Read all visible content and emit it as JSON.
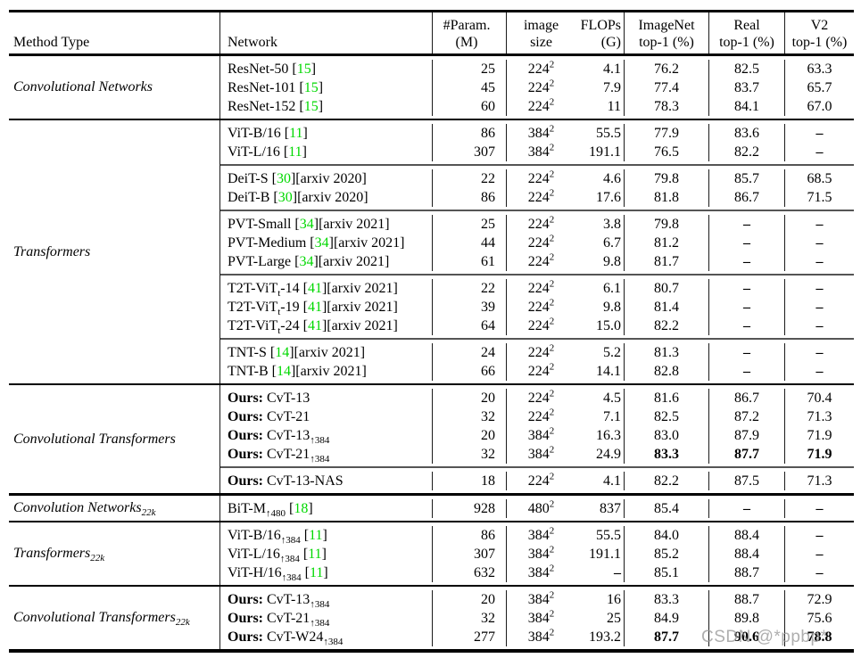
{
  "colors": {
    "citation_green": "#00d800",
    "watermark_gray": "#9b9b9b",
    "rule_black": "#000000"
  },
  "watermark": "CSDN @*ppbp*",
  "header": {
    "method_type": "Method Type",
    "network": "Network",
    "params_l1": "#Param.",
    "params_l2": "(M)",
    "size_l1": "image",
    "size_l2": "size",
    "flops_l1": "FLOPs",
    "flops_l2": "(G)",
    "imagenet_l1": "ImageNet",
    "imagenet_l2": "top-1 (%)",
    "real_l1": "Real",
    "real_l2": "top-1 (%)",
    "v2_l1": "V2",
    "v2_l2": "top-1 (%)"
  },
  "sections": [
    {
      "method_type": "Convolutional Networks",
      "thick_bottom": false,
      "groups": [
        [
          {
            "ours": false,
            "network": "ResNet-50",
            "cite": "15",
            "note": "",
            "params": "25",
            "size": "224^{2}",
            "flops": "4.1",
            "imagenet": "76.2",
            "real": "82.5",
            "v2": "63.3",
            "bold_metrics": false
          },
          {
            "ours": false,
            "network": "ResNet-101",
            "cite": "15",
            "note": "",
            "params": "45",
            "size": "224^{2}",
            "flops": "7.9",
            "imagenet": "77.4",
            "real": "83.7",
            "v2": "65.7",
            "bold_metrics": false
          },
          {
            "ours": false,
            "network": "ResNet-152",
            "cite": "15",
            "note": "",
            "params": "60",
            "size": "224^{2}",
            "flops": "11",
            "imagenet": "78.3",
            "real": "84.1",
            "v2": "67.0",
            "bold_metrics": false
          }
        ]
      ]
    },
    {
      "method_type": "Transformers",
      "thick_bottom": false,
      "groups": [
        [
          {
            "ours": false,
            "network": "ViT-B/16",
            "cite": "11",
            "note": "",
            "params": "86",
            "size": "384^{2}",
            "flops": "55.5",
            "imagenet": "77.9",
            "real": "83.6",
            "v2": "–",
            "bold_metrics": false
          },
          {
            "ours": false,
            "network": "ViT-L/16",
            "cite": "11",
            "note": "",
            "params": "307",
            "size": "384^{2}",
            "flops": "191.1",
            "imagenet": "76.5",
            "real": "82.2",
            "v2": "–",
            "bold_metrics": false
          }
        ],
        [
          {
            "ours": false,
            "network": "DeiT-S",
            "cite": "30",
            "note": "[arxiv 2020]",
            "params": "22",
            "size": "224^{2}",
            "flops": "4.6",
            "imagenet": "79.8",
            "real": "85.7",
            "v2": "68.5",
            "bold_metrics": false
          },
          {
            "ours": false,
            "network": "DeiT-B",
            "cite": "30",
            "note": "[arxiv 2020]",
            "params": "86",
            "size": "224^{2}",
            "flops": "17.6",
            "imagenet": "81.8",
            "real": "86.7",
            "v2": "71.5",
            "bold_metrics": false
          }
        ],
        [
          {
            "ours": false,
            "network": "PVT-Small",
            "cite": "34",
            "note": "[arxiv 2021]",
            "params": "25",
            "size": "224^{2}",
            "flops": "3.8",
            "imagenet": "79.8",
            "real": "–",
            "v2": "–",
            "bold_metrics": false
          },
          {
            "ours": false,
            "network": "PVT-Medium",
            "cite": "34",
            "note": "[arxiv 2021]",
            "params": "44",
            "size": "224^{2}",
            "flops": "6.7",
            "imagenet": "81.2",
            "real": "–",
            "v2": "–",
            "bold_metrics": false
          },
          {
            "ours": false,
            "network": "PVT-Large",
            "cite": "34",
            "note": "[arxiv 2021]",
            "params": "61",
            "size": "224^{2}",
            "flops": "9.8",
            "imagenet": "81.7",
            "real": "–",
            "v2": "–",
            "bold_metrics": false
          }
        ],
        [
          {
            "ours": false,
            "network": "T2T-ViT_{t}-14",
            "cite": "41",
            "note": "[arxiv 2021]",
            "params": "22",
            "size": "224^{2}",
            "flops": "6.1",
            "imagenet": "80.7",
            "real": "–",
            "v2": "–",
            "bold_metrics": false
          },
          {
            "ours": false,
            "network": "T2T-ViT_{t}-19",
            "cite": "41",
            "note": "[arxiv 2021]",
            "params": "39",
            "size": "224^{2}",
            "flops": "9.8",
            "imagenet": "81.4",
            "real": "–",
            "v2": "–",
            "bold_metrics": false
          },
          {
            "ours": false,
            "network": "T2T-ViT_{t}-24",
            "cite": "41",
            "note": "[arxiv 2021]",
            "params": "64",
            "size": "224^{2}",
            "flops": "15.0",
            "imagenet": "82.2",
            "real": "–",
            "v2": "–",
            "bold_metrics": false
          }
        ],
        [
          {
            "ours": false,
            "network": "TNT-S",
            "cite": "14",
            "note": "[arxiv 2021]",
            "params": "24",
            "size": "224^{2}",
            "flops": "5.2",
            "imagenet": "81.3",
            "real": "–",
            "v2": "–",
            "bold_metrics": false
          },
          {
            "ours": false,
            "network": "TNT-B",
            "cite": "14",
            "note": "[arxiv 2021]",
            "params": "66",
            "size": "224^{2}",
            "flops": "14.1",
            "imagenet": "82.8",
            "real": "–",
            "v2": "–",
            "bold_metrics": false
          }
        ]
      ]
    },
    {
      "method_type": "Convolutional Transformers",
      "thick_bottom": true,
      "groups": [
        [
          {
            "ours": true,
            "network": "CvT-13",
            "cite": "",
            "note": "",
            "params": "20",
            "size": "224^{2}",
            "flops": "4.5",
            "imagenet": "81.6",
            "real": "86.7",
            "v2": "70.4",
            "bold_metrics": false
          },
          {
            "ours": true,
            "network": "CvT-21",
            "cite": "",
            "note": "",
            "params": "32",
            "size": "224^{2}",
            "flops": "7.1",
            "imagenet": "82.5",
            "real": "87.2",
            "v2": "71.3",
            "bold_metrics": false
          },
          {
            "ours": true,
            "network": "CvT-13_{↑384}",
            "cite": "",
            "note": "",
            "params": "20",
            "size": "384^{2}",
            "flops": "16.3",
            "imagenet": "83.0",
            "real": "87.9",
            "v2": "71.9",
            "bold_metrics": false
          },
          {
            "ours": true,
            "network": "CvT-21_{↑384}",
            "cite": "",
            "note": "",
            "params": "32",
            "size": "384^{2}",
            "flops": "24.9",
            "imagenet": "83.3",
            "real": "87.7",
            "v2": "71.9",
            "bold_metrics": true
          }
        ],
        [
          {
            "ours": true,
            "network": "CvT-13-NAS",
            "cite": "",
            "note": "",
            "params": "18",
            "size": "224^{2}",
            "flops": "4.1",
            "imagenet": "82.2",
            "real": "87.5",
            "v2": "71.3",
            "bold_metrics": false
          }
        ]
      ]
    },
    {
      "method_type": "Convolution Networks_{22k}",
      "thick_bottom": false,
      "groups": [
        [
          {
            "ours": false,
            "network": "BiT-M_{↑480}",
            "cite": "18",
            "note": "",
            "params": "928",
            "size": "480^{2}",
            "flops": "837",
            "imagenet": "85.4",
            "real": "–",
            "v2": "–",
            "bold_metrics": false
          }
        ]
      ]
    },
    {
      "method_type": "Transformers_{22k}",
      "thick_bottom": false,
      "groups": [
        [
          {
            "ours": false,
            "network": "ViT-B/16_{↑384}",
            "cite": "11",
            "note": "",
            "params": "86",
            "size": "384^{2}",
            "flops": "55.5",
            "imagenet": "84.0",
            "real": "88.4",
            "v2": "–",
            "bold_metrics": false
          },
          {
            "ours": false,
            "network": "ViT-L/16_{↑384}",
            "cite": "11",
            "note": "",
            "params": "307",
            "size": "384^{2}",
            "flops": "191.1",
            "imagenet": "85.2",
            "real": "88.4",
            "v2": "–",
            "bold_metrics": false
          },
          {
            "ours": false,
            "network": "ViT-H/16_{↑384}",
            "cite": "11",
            "note": "",
            "params": "632",
            "size": "384^{2}",
            "flops": "–",
            "imagenet": "85.1",
            "real": "88.7",
            "v2": "–",
            "bold_metrics": false
          }
        ]
      ]
    },
    {
      "method_type": "Convolutional Transformers_{22k}",
      "thick_bottom": false,
      "groups": [
        [
          {
            "ours": true,
            "network": "CvT-13_{↑384}",
            "cite": "",
            "note": "",
            "params": "20",
            "size": "384^{2}",
            "flops": "16",
            "imagenet": "83.3",
            "real": "88.7",
            "v2": "72.9",
            "bold_metrics": false
          },
          {
            "ours": true,
            "network": "CvT-21_{↑384}",
            "cite": "",
            "note": "",
            "params": "32",
            "size": "384^{2}",
            "flops": "25",
            "imagenet": "84.9",
            "real": "89.8",
            "v2": "75.6",
            "bold_metrics": false
          },
          {
            "ours": true,
            "network": "CvT-W24_{↑384}",
            "cite": "",
            "note": "",
            "params": "277",
            "size": "384^{2}",
            "flops": "193.2",
            "imagenet": "87.7",
            "real": "90.6",
            "v2": "78.8",
            "bold_metrics": true
          }
        ]
      ]
    }
  ]
}
